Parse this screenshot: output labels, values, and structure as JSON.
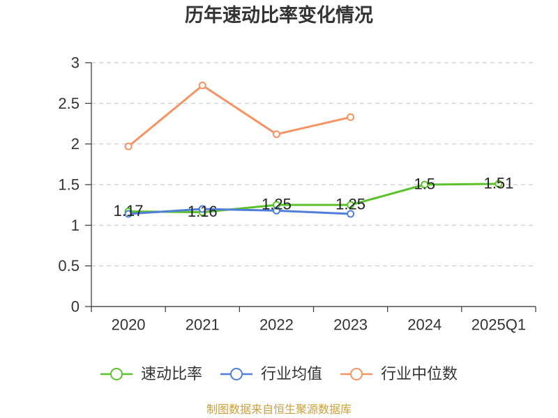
{
  "chart_data": {
    "type": "line",
    "title": "历年速动比率变化情况",
    "categories": [
      "2020",
      "2021",
      "2022",
      "2023",
      "2024",
      "2025Q1"
    ],
    "ylim": [
      0,
      3
    ],
    "yticks": [
      0,
      0.5,
      1,
      1.5,
      2,
      2.5,
      3
    ],
    "grid": true,
    "legend_position": "bottom",
    "series": [
      {
        "name": "速动比率",
        "color": "#5cc22b",
        "values": [
          1.17,
          1.16,
          1.25,
          1.25,
          1.5,
          1.51
        ],
        "data_labels": true
      },
      {
        "name": "行业均值",
        "color": "#4f7fd9",
        "values": [
          1.14,
          1.2,
          1.18,
          1.14,
          null,
          null
        ],
        "data_labels": false
      },
      {
        "name": "行业中位数",
        "color": "#f79262",
        "values": [
          1.97,
          2.72,
          2.12,
          2.33,
          null,
          null
        ],
        "data_labels": false
      }
    ]
  },
  "footer": {
    "source": "制图数据来自恒生聚源数据库"
  }
}
